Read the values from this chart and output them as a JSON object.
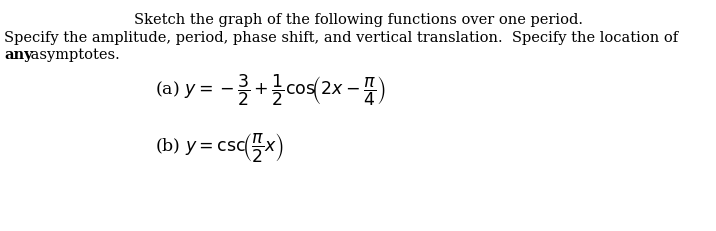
{
  "line1": "Sketch the graph of the following functions over one period.",
  "line2": "Specify the amplitude, period, phase shift, and vertical translation.  Specify the location of",
  "line3_bold": "any",
  "line3_rest": " asymptotes.",
  "formula_a": "(a) $y = -\\dfrac{3}{2} + \\dfrac{1}{2}\\mathrm{cos}\\!\\left(2x - \\dfrac{\\pi}{4}\\right)$",
  "formula_b": "(b) $y = \\mathrm{csc}\\!\\left(\\dfrac{\\pi}{2}x\\right)$",
  "bg_color": "#ffffff",
  "text_color": "#000000",
  "body_fontsize": 10.5,
  "math_fontsize": 12.5
}
